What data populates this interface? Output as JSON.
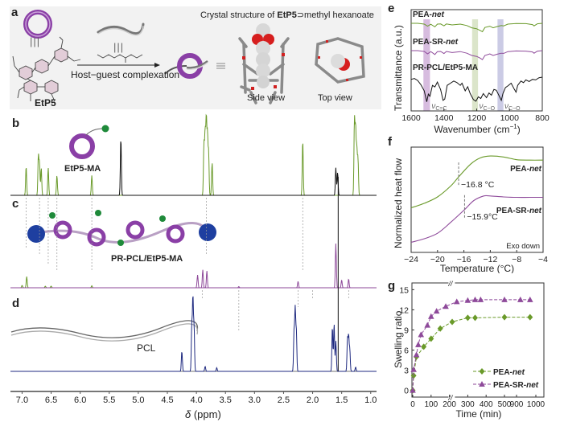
{
  "figure": {
    "panels": {
      "a": {
        "label": "a",
        "host_label": "EtP5",
        "crystal_title_prefix": "Crystal structure of ",
        "crystal_title_bold": "EtP5",
        "crystal_title_suffix": "⊃methyl hexanoate",
        "arrow_label": "Host−guest complexation",
        "equiv_symbol": "≡",
        "triple_bar": "|||",
        "side_view": "Side view",
        "top_view": "Top view"
      },
      "b": {
        "label": "b",
        "species": "EtP5-MA"
      },
      "c": {
        "label": "c",
        "species": "PR-PCL/EtP5-MA"
      },
      "d": {
        "label": "d",
        "species": "PCL"
      },
      "e": {
        "label": "e"
      },
      "f": {
        "label": "f"
      },
      "g": {
        "label": "g"
      }
    },
    "colors": {
      "green": "#6a9a2a",
      "purple": "#8e4a9a",
      "navy": "#1f2a80",
      "black": "#111111",
      "ring_purple": "#8a3fa6",
      "bead_blue": "#1e3fa0",
      "ball_green": "#1f8a3a"
    }
  },
  "chart_data": [
    {
      "id": "nmr",
      "type": "line",
      "title": "",
      "xlabel_symbol": "δ",
      "xlabel": " (ppm)",
      "xlim": [
        7.2,
        0.9
      ],
      "xticks": [
        7.0,
        6.5,
        6.0,
        5.5,
        5.0,
        4.5,
        4.0,
        3.5,
        3.0,
        2.5,
        2.0,
        1.5,
        1.0
      ],
      "xtick_labels": [
        "7.0",
        "6.5",
        "6.0",
        "5.5",
        "5.0",
        "4.5",
        "4.0",
        "3.5",
        "3.0",
        "2.5",
        "2.0",
        "1.5",
        "1.0"
      ],
      "solvent_peak_ppm": 1.56,
      "series": [
        {
          "name": "EtP5-MA",
          "panel": "b",
          "color": "#6a9a2a",
          "peaks": [
            [
              6.93,
              0.38
            ],
            [
              6.72,
              0.52
            ],
            [
              6.7,
              0.42
            ],
            [
              6.67,
              0.36
            ],
            [
              6.55,
              0.36
            ],
            [
              6.4,
              0.26
            ],
            [
              5.8,
              0.26
            ],
            [
              3.87,
              0.66
            ],
            [
              3.85,
              0.8
            ],
            [
              3.83,
              1.0
            ],
            [
              3.81,
              0.78
            ],
            [
              3.79,
              0.56
            ],
            [
              3.73,
              0.43
            ],
            [
              2.17,
              0.72
            ],
            [
              1.28,
              1.0
            ],
            [
              1.26,
              0.86
            ],
            [
              1.24,
              0.6
            ],
            [
              1.22,
              0.48
            ]
          ],
          "extra_peaks_black": [
            [
              5.3,
              0.75
            ],
            [
              1.6,
              0.36
            ],
            [
              1.57,
              0.3
            ]
          ]
        },
        {
          "name": "PR-PCL/EtP5-MA",
          "panel": "c",
          "color_left": "#6a9a2a",
          "color_right": "#8e4a9a",
          "peaks": [
            [
              7.0,
              0.06
            ],
            [
              6.92,
              0.28
            ],
            [
              6.6,
              0.04
            ],
            [
              6.5,
              0.04
            ],
            [
              5.8,
              0.05
            ],
            [
              3.98,
              0.32
            ],
            [
              3.89,
              0.45
            ],
            [
              3.82,
              0.42
            ],
            [
              3.27,
              0.03
            ],
            [
              2.25,
              0.16
            ],
            [
              1.6,
              1.0
            ],
            [
              1.5,
              0.18
            ],
            [
              1.38,
              0.2
            ]
          ]
        },
        {
          "name": "PCL",
          "panel": "d",
          "color": "#1f2a80",
          "peaks": [
            [
              4.25,
              0.28
            ],
            [
              4.08,
              0.62
            ],
            [
              4.06,
              1.0
            ],
            [
              4.04,
              0.6
            ],
            [
              3.85,
              0.07
            ],
            [
              3.65,
              0.05
            ],
            [
              2.32,
              0.55
            ],
            [
              2.3,
              0.85
            ],
            [
              2.28,
              0.55
            ],
            [
              1.66,
              0.62
            ],
            [
              1.63,
              0.66
            ],
            [
              1.6,
              0.42
            ],
            [
              1.4,
              0.45
            ],
            [
              1.38,
              0.48
            ],
            [
              1.36,
              0.3
            ],
            [
              1.26,
              0.06
            ]
          ]
        }
      ]
    },
    {
      "id": "ftir",
      "panel": "e",
      "type": "line",
      "xlabel": "Wavenumber (cm",
      "xlabel_sup": "−1",
      "xlabel_end": ")",
      "ylabel": "Transmittance (a.u.)",
      "xlim": [
        1600,
        800
      ],
      "xticks": [
        1600,
        1400,
        1200,
        1000,
        800
      ],
      "xtick_labels": [
        "1600",
        "1400",
        "1200",
        "1000",
        "800"
      ],
      "bands": [
        {
          "center": 1505,
          "width": 40,
          "color": "#c9a6d4",
          "label": "ν",
          "sub": "C=C"
        },
        {
          "center": 1210,
          "width": 36,
          "color": "#cfdcb8",
          "label": "ν",
          "sub": "C−O"
        },
        {
          "center": 1055,
          "width": 36,
          "color": "#b9b9dc",
          "label": "ν",
          "sub": "C−O"
        }
      ],
      "series": [
        {
          "name": "PEA-",
          "name_italic": "net",
          "color": "#6a9a2a",
          "offset": 0,
          "points": [
            [
              1600,
              0
            ],
            [
              1560,
              0
            ],
            [
              1520,
              0.05
            ],
            [
              1500,
              0.18
            ],
            [
              1480,
              0.06
            ],
            [
              1455,
              0.22
            ],
            [
              1440,
              0.05
            ],
            [
              1420,
              0.04
            ],
            [
              1400,
              0.16
            ],
            [
              1385,
              0.04
            ],
            [
              1350,
              0.1
            ],
            [
              1300,
              0.05
            ],
            [
              1260,
              0.14
            ],
            [
              1230,
              0.28
            ],
            [
              1200,
              0.34
            ],
            [
              1180,
              0.44
            ],
            [
              1165,
              0.52
            ],
            [
              1150,
              0.26
            ],
            [
              1120,
              0.18
            ],
            [
              1100,
              0.28
            ],
            [
              1075,
              0.2
            ],
            [
              1050,
              0.14
            ],
            [
              1035,
              0.16
            ],
            [
              1010,
              0.05
            ],
            [
              960,
              0.01
            ],
            [
              900,
              0.02
            ],
            [
              860,
              0.08
            ],
            [
              850,
              0.16
            ],
            [
              830,
              0.03
            ],
            [
              800,
              0
            ]
          ]
        },
        {
          "name": "PEA-SR-",
          "name_italic": "net",
          "color": "#8e4a9a",
          "offset": 1,
          "points": [
            [
              1600,
              0
            ],
            [
              1560,
              0
            ],
            [
              1520,
              0.05
            ],
            [
              1500,
              0.2
            ],
            [
              1480,
              0.06
            ],
            [
              1455,
              0.24
            ],
            [
              1440,
              0.06
            ],
            [
              1420,
              0.05
            ],
            [
              1400,
              0.18
            ],
            [
              1385,
              0.05
            ],
            [
              1350,
              0.12
            ],
            [
              1300,
              0.06
            ],
            [
              1260,
              0.16
            ],
            [
              1230,
              0.3
            ],
            [
              1200,
              0.36
            ],
            [
              1180,
              0.46
            ],
            [
              1165,
              0.56
            ],
            [
              1150,
              0.3
            ],
            [
              1120,
              0.2
            ],
            [
              1100,
              0.3
            ],
            [
              1075,
              0.22
            ],
            [
              1050,
              0.16
            ],
            [
              1035,
              0.17
            ],
            [
              1010,
              0.06
            ],
            [
              960,
              0.02
            ],
            [
              900,
              0.03
            ],
            [
              860,
              0.08
            ],
            [
              850,
              0.16
            ],
            [
              830,
              0.03
            ],
            [
              800,
              0
            ]
          ]
        },
        {
          "name": "PR-PCL/EtP5-MA",
          "name_italic": "",
          "color": "#111111",
          "offset": 2,
          "points": [
            [
              1600,
              0.08
            ],
            [
              1580,
              0.05
            ],
            [
              1560,
              0.12
            ],
            [
              1540,
              0.28
            ],
            [
              1520,
              0.5
            ],
            [
              1505,
              0.9
            ],
            [
              1495,
              0.62
            ],
            [
              1485,
              0.7
            ],
            [
              1470,
              0.3
            ],
            [
              1455,
              0.36
            ],
            [
              1440,
              0.18
            ],
            [
              1420,
              0.46
            ],
            [
              1405,
              0.85
            ],
            [
              1395,
              0.8
            ],
            [
              1380,
              0.3
            ],
            [
              1360,
              0.22
            ],
            [
              1340,
              0.14
            ],
            [
              1320,
              0.2
            ],
            [
              1300,
              0.3
            ],
            [
              1290,
              0.22
            ],
            [
              1270,
              0.5
            ],
            [
              1255,
              0.35
            ],
            [
              1240,
              0.6
            ],
            [
              1220,
              0.82
            ],
            [
              1205,
              0.88
            ],
            [
              1190,
              0.72
            ],
            [
              1175,
              0.78
            ],
            [
              1160,
              0.6
            ],
            [
              1140,
              0.75
            ],
            [
              1125,
              0.58
            ],
            [
              1110,
              0.66
            ],
            [
              1095,
              0.45
            ],
            [
              1080,
              0.48
            ],
            [
              1060,
              0.72
            ],
            [
              1050,
              0.85
            ],
            [
              1040,
              0.6
            ],
            [
              1025,
              0.38
            ],
            [
              1010,
              0.32
            ],
            [
              990,
              0.22
            ],
            [
              970,
              0.45
            ],
            [
              960,
              0.55
            ],
            [
              950,
              0.3
            ],
            [
              930,
              0.14
            ],
            [
              915,
              0.2
            ],
            [
              900,
              0.1
            ],
            [
              880,
              0.16
            ],
            [
              860,
              0.08
            ],
            [
              840,
              0.1
            ],
            [
              820,
              0.02
            ],
            [
              800,
              0.0
            ]
          ]
        }
      ]
    },
    {
      "id": "dsc",
      "panel": "f",
      "type": "line",
      "xlabel": "Temperature (°C)",
      "ylabel": "Normalized heat flow",
      "xlim": [
        -24,
        -4
      ],
      "xticks": [
        -24,
        -20,
        -16,
        -12,
        -8,
        -4
      ],
      "xtick_labels": [
        "−24",
        "−20",
        "−16",
        "−12",
        "−8",
        "−4"
      ],
      "annotation": "Exo down",
      "series": [
        {
          "name": "PEA-",
          "name_italic": "net",
          "color": "#6a9a2a",
          "tg": -16.8,
          "tg_label": "−16.8 °C",
          "points": [
            [
              -24,
              0.42
            ],
            [
              -22,
              0.47
            ],
            [
              -20,
              0.54
            ],
            [
              -18,
              0.66
            ],
            [
              -16.8,
              0.76
            ],
            [
              -15,
              0.9
            ],
            [
              -13.5,
              0.97
            ],
            [
              -12,
              0.99
            ],
            [
              -10,
              0.98
            ],
            [
              -8,
              0.95
            ],
            [
              -6,
              0.945
            ],
            [
              -4,
              0.945
            ]
          ]
        },
        {
          "name": "PEA-SR-",
          "name_italic": "net",
          "color": "#8e4a9a",
          "tg": -15.9,
          "tg_label": "−15.9°C",
          "points": [
            [
              -24,
              0.04
            ],
            [
              -22,
              0.08
            ],
            [
              -20,
              0.14
            ],
            [
              -18,
              0.26
            ],
            [
              -15.9,
              0.4
            ],
            [
              -14.5,
              0.5
            ],
            [
              -13,
              0.55
            ],
            [
              -12,
              0.55
            ],
            [
              -10,
              0.54
            ],
            [
              -8,
              0.535
            ],
            [
              -6,
              0.535
            ],
            [
              -4,
              0.535
            ]
          ]
        }
      ]
    },
    {
      "id": "swelling",
      "panel": "g",
      "type": "scatter",
      "xlabel": "Time (min)",
      "ylabel": "Swelling ratio",
      "ylim": [
        -1,
        16
      ],
      "yticks": [
        0,
        3,
        6,
        9,
        12,
        15
      ],
      "ytick_labels": [
        "0",
        "3",
        "6",
        "9",
        "12",
        "15"
      ],
      "x_segments": [
        [
          0,
          500
        ],
        [
          800,
          1000
        ]
      ],
      "xticks": [
        0,
        100,
        200,
        300,
        400,
        500,
        900,
        1000
      ],
      "xtick_labels": [
        "0",
        "100",
        "200",
        "300",
        "400",
        "500",
        "900",
        "1000"
      ],
      "axis_break_symbol": "//",
      "legend_position": "bottom-right",
      "series": [
        {
          "name": "PEA-",
          "name_italic": "net",
          "marker": "diamond",
          "color": "#6a9a2a",
          "x": [
            0,
            5,
            20,
            60,
            100,
            150,
            215,
            300,
            340,
            500,
            970
          ],
          "y": [
            0,
            2.2,
            5.0,
            6.5,
            7.7,
            9.2,
            10.2,
            10.8,
            10.8,
            10.9,
            10.9
          ]
        },
        {
          "name": "PEA-SR-",
          "name_italic": "net",
          "marker": "triangle",
          "color": "#8e4a9a",
          "x": [
            0,
            5,
            20,
            30,
            45,
            80,
            100,
            130,
            180,
            240,
            300,
            340,
            370,
            500,
            920,
            970
          ],
          "y": [
            0,
            3.1,
            5.3,
            6.8,
            8.3,
            9.7,
            11.0,
            11.8,
            12.5,
            13.2,
            13.4,
            13.5,
            13.5,
            13.5,
            13.5,
            13.5
          ]
        }
      ]
    }
  ]
}
